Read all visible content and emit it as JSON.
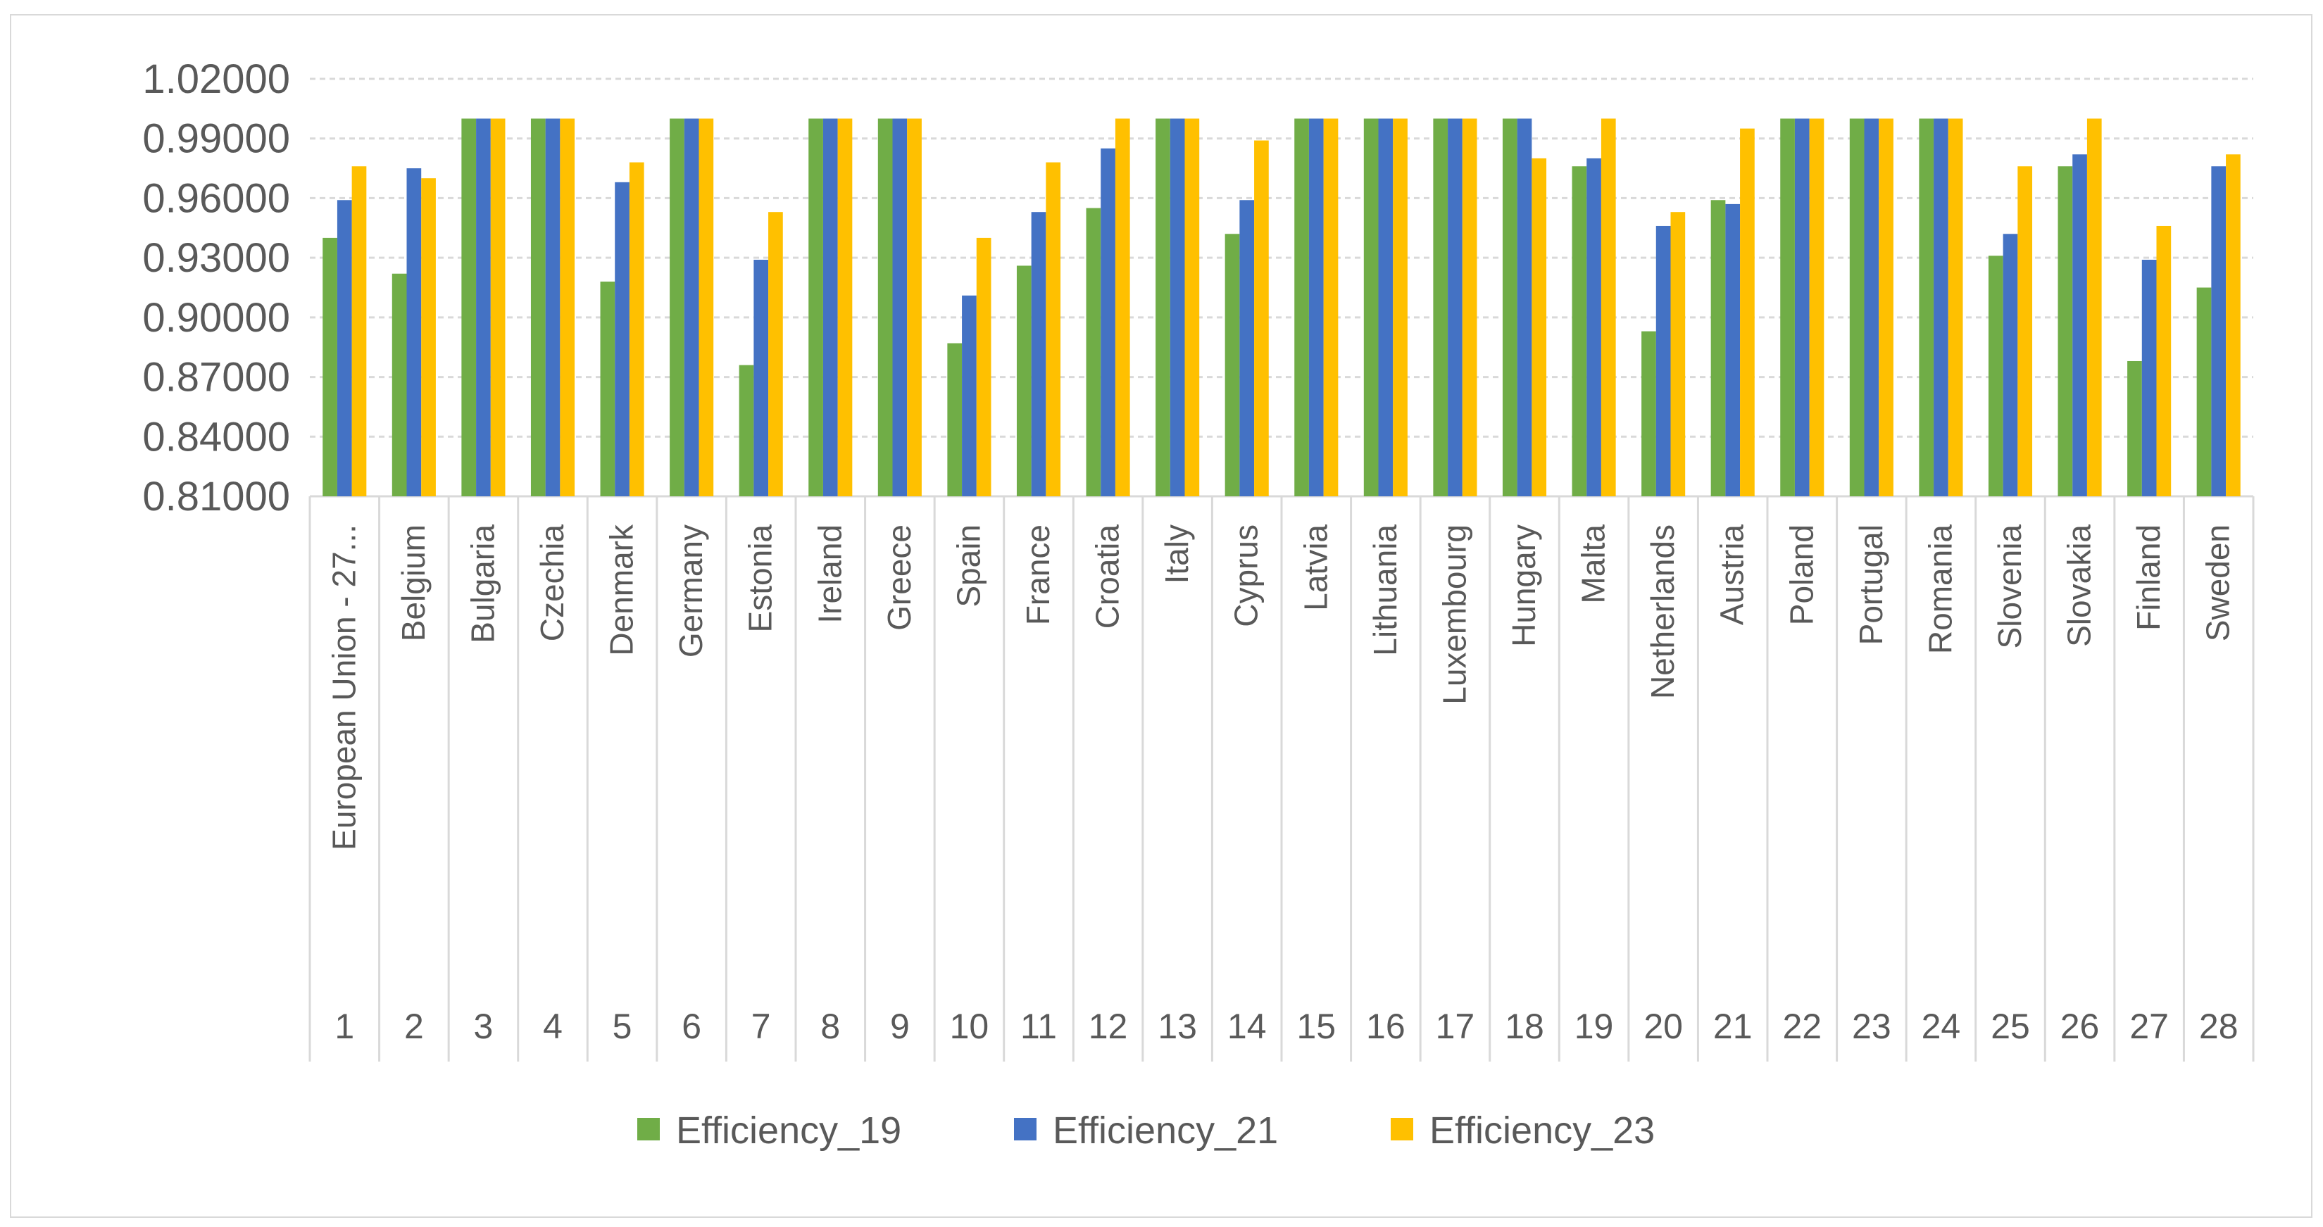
{
  "chart_data": {
    "type": "bar",
    "title": "",
    "xlabel": "",
    "ylabel": "",
    "ylim": [
      0.81,
      1.02
    ],
    "yticks": [
      "1.02000",
      "0.99000",
      "0.96000",
      "0.93000",
      "0.90000",
      "0.87000",
      "0.84000",
      "0.81000"
    ],
    "grid": true,
    "legend_position": "bottom",
    "index_labels": [
      "1",
      "2",
      "3",
      "4",
      "5",
      "6",
      "7",
      "8",
      "9",
      "10",
      "11",
      "12",
      "13",
      "14",
      "15",
      "16",
      "17",
      "18",
      "19",
      "20",
      "21",
      "22",
      "23",
      "24",
      "25",
      "26",
      "27",
      "28"
    ],
    "categories": [
      "European Union - 27...",
      "Belgium",
      "Bulgaria",
      "Czechia",
      "Denmark",
      "Germany",
      "Estonia",
      "Ireland",
      "Greece",
      "Spain",
      "France",
      "Croatia",
      "Italy",
      "Cyprus",
      "Latvia",
      "Lithuania",
      "Luxembourg",
      "Hungary",
      "Malta",
      "Netherlands",
      "Austria",
      "Poland",
      "Portugal",
      "Romania",
      "Slovenia",
      "Slovakia",
      "Finland",
      "Sweden"
    ],
    "series": [
      {
        "name": "Efficiency_19",
        "color": "#70ad47",
        "values": [
          0.94,
          0.922,
          1.0,
          1.0,
          0.918,
          1.0,
          0.876,
          1.0,
          1.0,
          0.887,
          0.926,
          0.955,
          1.0,
          0.942,
          1.0,
          1.0,
          1.0,
          1.0,
          0.976,
          0.893,
          0.959,
          1.0,
          1.0,
          1.0,
          0.931,
          0.976,
          0.878,
          0.915
        ]
      },
      {
        "name": "Efficiency_21",
        "color": "#4472c4",
        "values": [
          0.959,
          0.975,
          1.0,
          1.0,
          0.968,
          1.0,
          0.929,
          1.0,
          1.0,
          0.911,
          0.953,
          0.985,
          1.0,
          0.959,
          1.0,
          1.0,
          1.0,
          1.0,
          0.98,
          0.946,
          0.957,
          1.0,
          1.0,
          1.0,
          0.942,
          0.982,
          0.929,
          0.976
        ]
      },
      {
        "name": "Efficiency_23",
        "color": "#ffc000",
        "values": [
          0.976,
          0.97,
          1.0,
          1.0,
          0.978,
          1.0,
          0.953,
          1.0,
          1.0,
          0.94,
          0.978,
          1.0,
          1.0,
          0.989,
          1.0,
          1.0,
          1.0,
          0.98,
          1.0,
          0.953,
          0.995,
          1.0,
          1.0,
          1.0,
          0.976,
          1.0,
          0.946,
          0.982
        ]
      }
    ]
  }
}
